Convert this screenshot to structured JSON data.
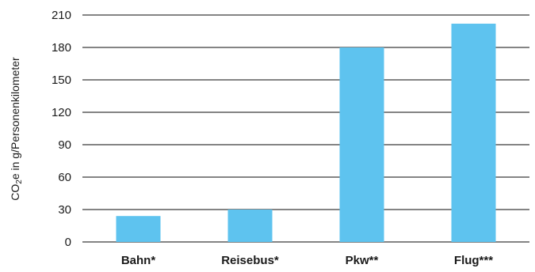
{
  "colors": {
    "bar": "#5ec3ef",
    "grid": "#3a3a3a",
    "text": "#1a1a1a"
  },
  "chart_data": {
    "type": "bar",
    "categories": [
      "Bahn*",
      "Reisebus*",
      "Pkw**",
      "Flug***"
    ],
    "values": [
      24,
      30,
      180,
      202
    ],
    "title": "",
    "xlabel": "",
    "ylabel_parts": {
      "pre": "CO",
      "sub": "2",
      "post": "e in g/Personenkilometer"
    },
    "ylim": [
      0,
      210
    ],
    "yticks": [
      "0",
      "30",
      "60",
      "90",
      "120",
      "150",
      "180",
      "210"
    ],
    "grid": true,
    "legend": "none"
  }
}
